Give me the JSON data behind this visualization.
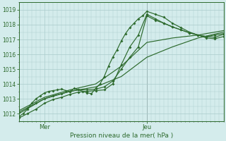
{
  "bg_color": "#d4ecec",
  "grid_color": "#aacccc",
  "line_color": "#2d6a2d",
  "axis_label": "Pression niveau de la mer( hPa )",
  "ylim": [
    1011.5,
    1019.5
  ],
  "yticks": [
    1012,
    1013,
    1014,
    1015,
    1016,
    1017,
    1018,
    1019
  ],
  "xlim": [
    0,
    48
  ],
  "xtick_positions": [
    6,
    30
  ],
  "xtick_labels": [
    "Mer",
    "Jeu"
  ],
  "vline_x": 30,
  "vline_color": "#666666",
  "line1_x": [
    0,
    1,
    2,
    3,
    4,
    5,
    6,
    7,
    8,
    9,
    10,
    11,
    12,
    13,
    14,
    15,
    16,
    17,
    18,
    19,
    20,
    21,
    22,
    23,
    24,
    25,
    26,
    27,
    28,
    29,
    30,
    32,
    34,
    36,
    38,
    40,
    42,
    44,
    46,
    48
  ],
  "line1_y": [
    1011.8,
    1012.0,
    1012.3,
    1012.7,
    1013.0,
    1013.2,
    1013.4,
    1013.5,
    1013.55,
    1013.6,
    1013.65,
    1013.55,
    1013.5,
    1013.7,
    1013.6,
    1013.5,
    1013.4,
    1013.35,
    1013.7,
    1014.0,
    1014.5,
    1015.2,
    1015.8,
    1016.3,
    1016.9,
    1017.4,
    1017.8,
    1018.1,
    1018.4,
    1018.6,
    1018.9,
    1018.7,
    1018.5,
    1018.1,
    1017.8,
    1017.5,
    1017.3,
    1017.2,
    1017.3,
    1017.4
  ],
  "line2_x": [
    0,
    2,
    4,
    6,
    8,
    10,
    12,
    14,
    16,
    18,
    20,
    22,
    24,
    26,
    28,
    30,
    32,
    34,
    36,
    38,
    40,
    42,
    44,
    46,
    48
  ],
  "line2_y": [
    1012.1,
    1012.4,
    1012.7,
    1013.0,
    1013.2,
    1013.35,
    1013.5,
    1013.6,
    1013.6,
    1013.65,
    1013.8,
    1014.2,
    1015.0,
    1015.8,
    1016.5,
    1018.6,
    1018.3,
    1018.1,
    1017.85,
    1017.65,
    1017.45,
    1017.3,
    1017.2,
    1017.15,
    1017.35
  ],
  "line3_x": [
    0,
    2,
    4,
    6,
    8,
    10,
    12,
    14,
    16,
    18,
    20,
    22,
    24,
    26,
    28,
    30,
    32,
    34,
    36,
    38,
    40,
    42,
    44,
    46,
    48
  ],
  "line3_y": [
    1011.7,
    1012.0,
    1012.3,
    1012.7,
    1012.95,
    1013.1,
    1013.3,
    1013.45,
    1013.5,
    1013.55,
    1013.6,
    1014.0,
    1015.3,
    1016.5,
    1017.3,
    1018.7,
    1018.4,
    1018.1,
    1017.85,
    1017.65,
    1017.45,
    1017.3,
    1017.1,
    1017.05,
    1017.2
  ],
  "line4_x": [
    0,
    6,
    12,
    18,
    24,
    30,
    36,
    42,
    48
  ],
  "line4_y": [
    1012.0,
    1013.0,
    1013.5,
    1013.8,
    1014.5,
    1015.8,
    1016.5,
    1017.1,
    1017.5
  ],
  "line5_x": [
    0,
    6,
    12,
    18,
    24,
    30,
    36,
    42,
    48
  ],
  "line5_y": [
    1012.2,
    1013.1,
    1013.6,
    1014.0,
    1015.2,
    1016.8,
    1017.1,
    1017.3,
    1017.6
  ]
}
